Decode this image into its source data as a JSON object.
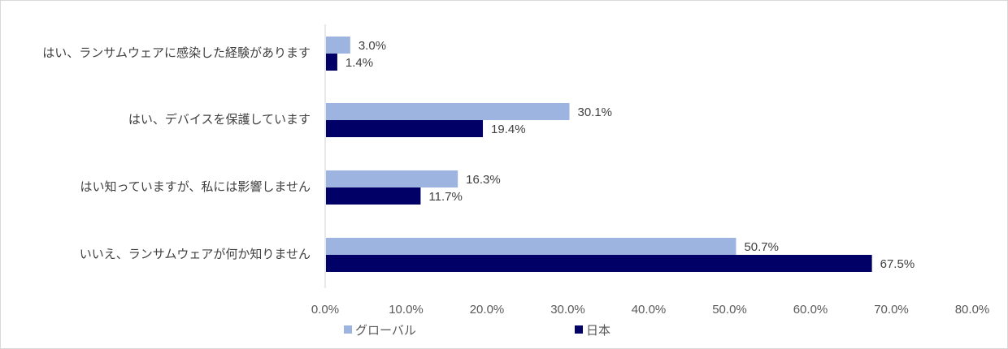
{
  "chart_data": {
    "type": "bar",
    "orientation": "horizontal",
    "categories": [
      "はい、ランサムウェアに感染した経験があります",
      "はい、デバイスを保護しています",
      "はい知っていますが、私には影響しません",
      "いいえ、ランサムウェアが何か知りません"
    ],
    "series": [
      {
        "name": "グローバル",
        "color": "#9eb4e0",
        "values": [
          3.0,
          30.1,
          16.3,
          50.7
        ]
      },
      {
        "name": "日本",
        "color": "#000066",
        "values": [
          1.4,
          19.4,
          11.7,
          67.5
        ]
      }
    ],
    "value_labels": [
      [
        "3.0%",
        "30.1%",
        "16.3%",
        "50.7%"
      ],
      [
        "1.4%",
        "19.4%",
        "11.7%",
        "67.5%"
      ]
    ],
    "xlim": [
      0,
      80
    ],
    "x_ticks": [
      "0.0%",
      "10.0%",
      "20.0%",
      "30.0%",
      "40.0%",
      "50.0%",
      "60.0%",
      "70.0%",
      "80.0%"
    ],
    "title": "",
    "xlabel": "",
    "ylabel": "",
    "grid": false,
    "legend_position": "bottom-left"
  }
}
